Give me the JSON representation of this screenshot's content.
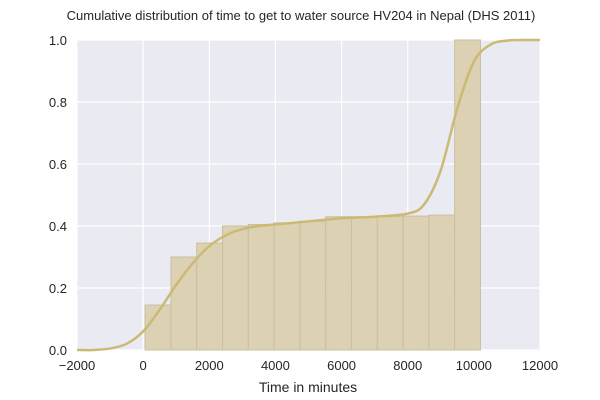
{
  "chart_data": {
    "type": "bar",
    "title": "Cumulative distribution of time to get to water source HV204 in Nepal (DHS 2011)",
    "xlabel": "Time in minutes",
    "ylabel": "",
    "xlim": [
      -2000,
      12000
    ],
    "ylim": [
      0,
      1.0
    ],
    "xticks": [
      "−2000",
      "0",
      "2000",
      "4000",
      "6000",
      "8000",
      "10000",
      "12000"
    ],
    "xtick_values": [
      -2000,
      0,
      2000,
      4000,
      6000,
      8000,
      10000,
      12000
    ],
    "yticks": [
      "0.0",
      "0.2",
      "0.4",
      "0.6",
      "0.8",
      "1.0"
    ],
    "ytick_values": [
      0,
      0.2,
      0.4,
      0.6,
      0.8,
      1.0
    ],
    "grid": true,
    "bin_width": 780,
    "bars": [
      {
        "x0": 60,
        "value": 0.145
      },
      {
        "x0": 840,
        "value": 0.3
      },
      {
        "x0": 1620,
        "value": 0.345
      },
      {
        "x0": 2400,
        "value": 0.4
      },
      {
        "x0": 3180,
        "value": 0.405
      },
      {
        "x0": 3960,
        "value": 0.41
      },
      {
        "x0": 4740,
        "value": 0.415
      },
      {
        "x0": 5520,
        "value": 0.43
      },
      {
        "x0": 6300,
        "value": 0.43
      },
      {
        "x0": 7080,
        "value": 0.43
      },
      {
        "x0": 7860,
        "value": 0.432
      },
      {
        "x0": 8640,
        "value": 0.435
      },
      {
        "x0": 9420,
        "value": 1.0
      }
    ],
    "curve": {
      "x": [
        -2000,
        -1500,
        -1000,
        -500,
        0,
        500,
        1000,
        1500,
        2000,
        2500,
        3000,
        3500,
        4000,
        5000,
        6000,
        7000,
        8000,
        8500,
        9000,
        9500,
        10000,
        10500,
        11000,
        11500,
        12000
      ],
      "y": [
        0.0,
        0.0,
        0.005,
        0.02,
        0.06,
        0.13,
        0.21,
        0.28,
        0.335,
        0.37,
        0.39,
        0.4,
        0.405,
        0.415,
        0.425,
        0.43,
        0.44,
        0.47,
        0.58,
        0.78,
        0.93,
        0.985,
        0.998,
        1.0,
        1.0
      ]
    },
    "colors": {
      "background": "#eaeaf2",
      "grid": "#ffffff",
      "bar_fill": "#dcd0b0",
      "bar_edge": "#cbbf9f",
      "curve": "#ccb974"
    }
  }
}
